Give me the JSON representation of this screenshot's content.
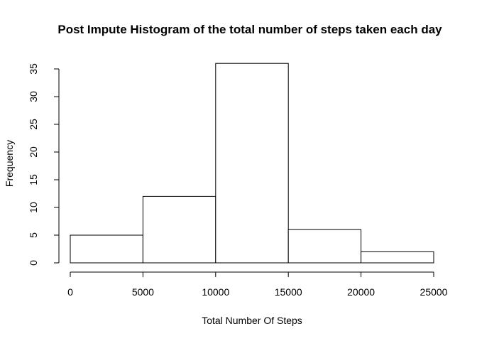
{
  "chart_data": {
    "type": "bar",
    "histogram": true,
    "title": "Post Impute Histogram of the total number of steps taken each day",
    "xlabel": "Total Number Of Steps",
    "ylabel": "Frequency",
    "bins": [
      {
        "from": 0,
        "to": 5000,
        "count": 5
      },
      {
        "from": 5000,
        "to": 10000,
        "count": 12
      },
      {
        "from": 10000,
        "to": 15000,
        "count": 36
      },
      {
        "from": 15000,
        "to": 20000,
        "count": 6
      },
      {
        "from": 20000,
        "to": 25000,
        "count": 2
      }
    ],
    "xlim": [
      0,
      25000
    ],
    "ylim": [
      0,
      35
    ],
    "x_ticks": [
      0,
      5000,
      10000,
      15000,
      20000,
      25000
    ],
    "y_ticks": [
      0,
      5,
      10,
      15,
      20,
      25,
      30,
      35
    ],
    "grid": false,
    "bar_fill": "#ffffff",
    "bar_stroke": "#000000"
  }
}
